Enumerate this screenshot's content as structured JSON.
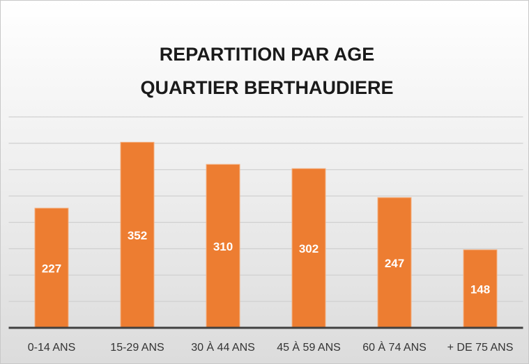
{
  "chart_data": {
    "type": "bar",
    "title": [
      "REPARTITION PAR AGE",
      "QUARTIER BERTHAUDIERE"
    ],
    "categories": [
      "0-14 ANS",
      "15-29 ANS",
      "30 À 44 ANS",
      "45 À 59 ANS",
      "60 À 74 ANS",
      "+ DE 75 ANS"
    ],
    "values": [
      227,
      352,
      310,
      302,
      247,
      148
    ],
    "color": "#ed7d31",
    "ylim": [
      0,
      400
    ],
    "yticks": [
      0,
      50,
      100,
      150,
      200,
      250,
      300,
      350,
      400
    ],
    "grid": true
  }
}
